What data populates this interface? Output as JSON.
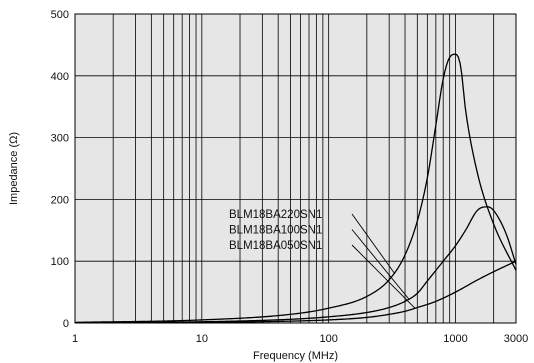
{
  "chart_data": {
    "type": "line",
    "title": "",
    "xlabel": "Frequency (MHz)",
    "ylabel": "Impedance (Ω)",
    "xscale": "log",
    "xlim": [
      1,
      3000
    ],
    "ylim": [
      0,
      500
    ],
    "yticks": [
      0,
      100,
      200,
      300,
      400,
      500
    ],
    "xtick_labels": [
      {
        "value": 1,
        "label": "1"
      },
      {
        "value": 10,
        "label": "10"
      },
      {
        "value": 100,
        "label": "100"
      },
      {
        "value": 1000,
        "label": "1000"
      },
      {
        "value": 3000,
        "label": "3000"
      }
    ],
    "grid": true,
    "plot_background": "#e6e6e6",
    "line_color": "#000000",
    "series": [
      {
        "name": "BLM18BA220SN1",
        "x": [
          1,
          10,
          50,
          100,
          200,
          300,
          400,
          500,
          600,
          700,
          800,
          900,
          1000,
          1100,
          1200,
          1500,
          2000,
          3000
        ],
        "y": [
          1,
          5,
          14,
          24,
          43,
          70,
          110,
          165,
          235,
          320,
          395,
          430,
          435,
          415,
          345,
          240,
          160,
          85
        ]
      },
      {
        "name": "BLM18BA100SN1",
        "x": [
          1,
          10,
          50,
          100,
          200,
          300,
          400,
          500,
          600,
          800,
          1000,
          1200,
          1500,
          1800,
          2000,
          2500,
          3000
        ],
        "y": [
          0.5,
          2,
          6,
          10,
          17,
          25,
          35,
          48,
          68,
          100,
          125,
          150,
          183,
          188,
          182,
          145,
          95
        ]
      },
      {
        "name": "BLM18BA050SN1",
        "x": [
          1,
          10,
          50,
          100,
          200,
          300,
          400,
          500,
          700,
          1000,
          1500,
          2000,
          3000
        ],
        "y": [
          0.2,
          1,
          3,
          5,
          9,
          14,
          19,
          25,
          35,
          50,
          70,
          83,
          100
        ]
      }
    ]
  }
}
